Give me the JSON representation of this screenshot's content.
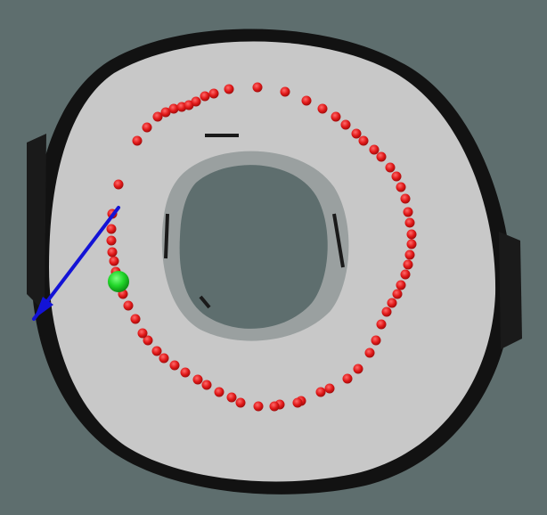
{
  "map": {
    "colors": {
      "unknown": "#5e6e6e",
      "free": "#c8c8c8",
      "occupied": "#121212",
      "inner_unknown": "#5e6e6e",
      "inner_edge": "#9aa0a0",
      "path_point": "#e01818",
      "robot": "#21d629",
      "heading_arrow": "#1313d6"
    },
    "icons": {
      "robot": "robot-position-icon",
      "heading": "heading-arrow-icon"
    }
  }
}
